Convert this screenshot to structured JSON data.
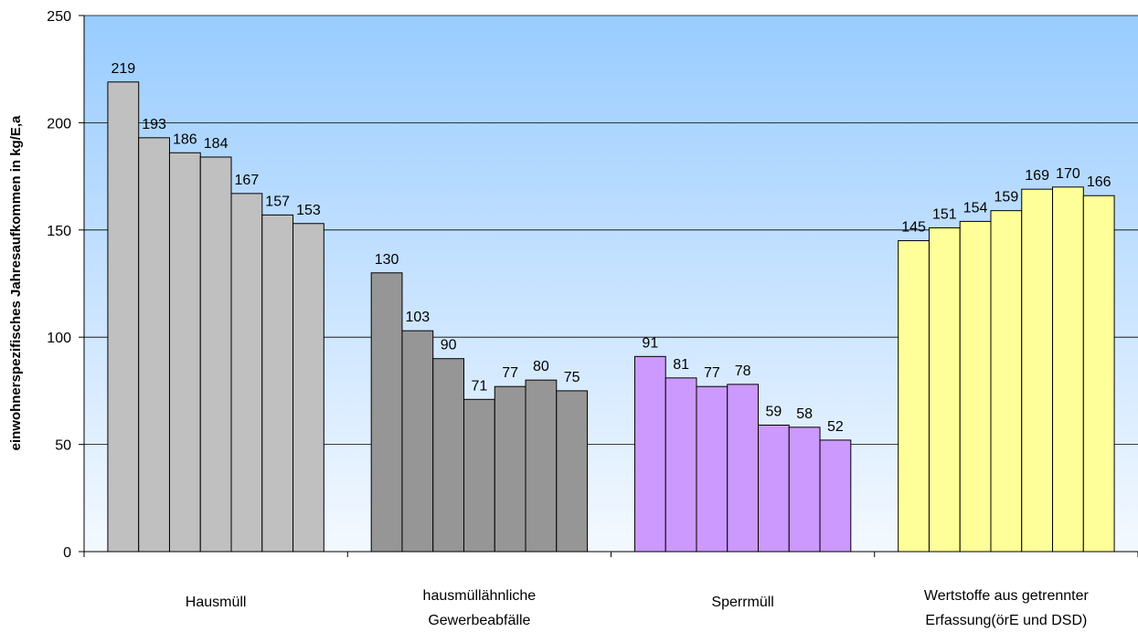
{
  "chart_data": {
    "type": "bar",
    "y_axis_label": "einwohnerspezifisches Jahresaufkommen in kg/E,a",
    "categories": [
      [
        "Hausmüll"
      ],
      [
        "hausmüllähnliche",
        "Gewerbeabfälle"
      ],
      [
        "Sperrmüll"
      ],
      [
        "Wertstoffe aus getrennter",
        "Erfassung(örE und DSD)"
      ]
    ],
    "category_colors": [
      "#c0c0c0",
      "#969696",
      "#cc99ff",
      "#ffff99"
    ],
    "series": [
      {
        "values": [
          219,
          130,
          91,
          145
        ]
      },
      {
        "values": [
          193,
          103,
          81,
          151
        ]
      },
      {
        "values": [
          186,
          90,
          77,
          154
        ]
      },
      {
        "values": [
          184,
          71,
          78,
          159
        ]
      },
      {
        "values": [
          167,
          77,
          59,
          169
        ]
      },
      {
        "values": [
          157,
          80,
          58,
          170
        ]
      },
      {
        "values": [
          153,
          75,
          52,
          166
        ]
      }
    ],
    "ylim": [
      0,
      250
    ],
    "yticks": [
      0,
      50,
      100,
      150,
      200,
      250
    ],
    "grid": true
  }
}
